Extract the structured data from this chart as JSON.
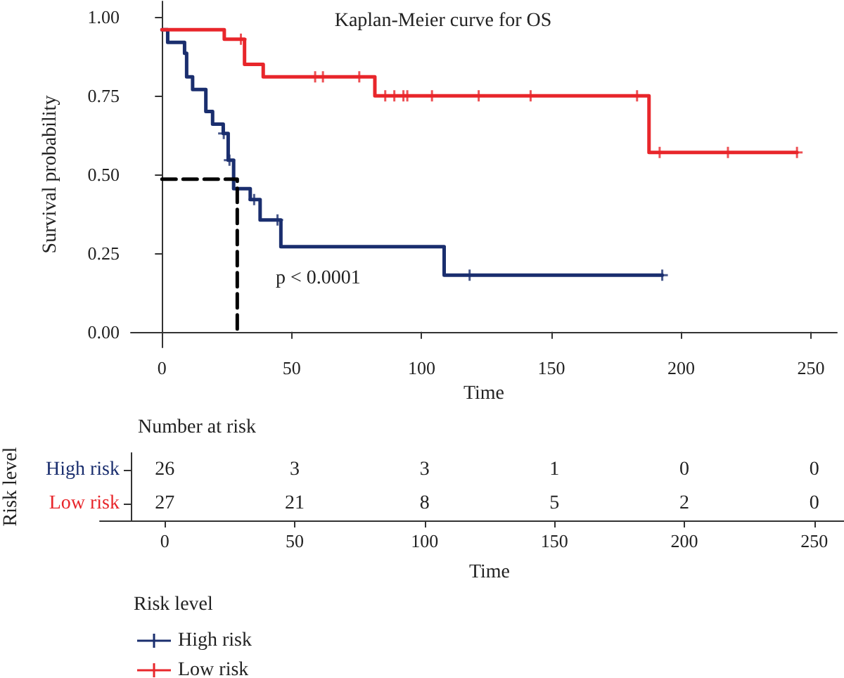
{
  "chart_data": [
    {
      "type": "step",
      "title": "Kaplan-Meier curve for OS",
      "xlabel": "Time",
      "ylabel": "Survival probability",
      "legend_title": "Risk level",
      "legend": "bottom left",
      "grid": false,
      "xlim": [
        -12,
        260
      ],
      "xticks": [
        0,
        50,
        100,
        150,
        200,
        250
      ],
      "ylim": [
        -0.05,
        1.05
      ],
      "yticks": [
        {
          "value": 0,
          "label": "0.00"
        },
        {
          "value": 0.25,
          "label": "0.25"
        },
        {
          "value": 0.5,
          "label": "0.50"
        },
        {
          "value": 0.75,
          "label": "0.75"
        },
        {
          "value": 1,
          "label": "1.00"
        }
      ],
      "annotations": [
        "p < 0.0001"
      ],
      "series": [
        {
          "name": "High risk",
          "color": "#1a2e6e",
          "marker": "none",
          "x": [
            0,
            2.2,
            8.7,
            9.5,
            11.8,
            16.9,
            19.5,
            23.6,
            25.5,
            27.6,
            34,
            37.8,
            45.8,
            108.7,
            192.7
          ],
          "values": [
            0.96,
            0.92,
            0.885,
            0.81,
            0.77,
            0.7,
            0.66,
            0.63,
            0.545,
            0.455,
            0.42,
            0.355,
            0.27,
            0.18,
            0.18
          ]
        },
        {
          "name": "Low risk",
          "color": "#e8262b",
          "marker": "none",
          "x": [
            0,
            24,
            31.8,
            39,
            82,
            187.6,
            244.6
          ],
          "values": [
            0.96,
            0.93,
            0.85,
            0.81,
            0.75,
            0.57,
            0.57
          ]
        },
        {
          "type": "scatter",
          "color": "#1a2e6e",
          "marker": "cross",
          "x": [
            23.8,
            26,
            35.5,
            44.5,
            118.5,
            192.7
          ],
          "values": [
            0.63,
            0.545,
            0.42,
            0.355,
            0.18,
            0.18
          ]
        },
        {
          "type": "scatter",
          "color": "#e8262b",
          "marker": "cross",
          "x": [
            30.4,
            59,
            62,
            76,
            86,
            89.5,
            93,
            94.5,
            104,
            122,
            142,
            183,
            191.7,
            218,
            244.6
          ],
          "values": [
            0.93,
            0.81,
            0.81,
            0.81,
            0.75,
            0.75,
            0.75,
            0.75,
            0.75,
            0.75,
            0.75,
            0.75,
            0.57,
            0.57,
            0.57
          ]
        },
        {
          "type": "line",
          "color": "#000000",
          "marker": "none",
          "line_style": "dashed",
          "x": [
            0,
            29,
            29
          ],
          "values": [
            0.485,
            0.485,
            0
          ]
        }
      ]
    },
    {
      "type": "heatmap",
      "title": "Number at risk",
      "xlabel": "Time",
      "ylabel": "Risk level",
      "data_labels": true,
      "categories": [
        "0",
        "50",
        "100",
        "150",
        "200",
        "250"
      ],
      "y_categories": [
        "High risk",
        "Low risk"
      ],
      "cells": [
        [
          26,
          3,
          3,
          1,
          0,
          0
        ],
        [
          27,
          21,
          8,
          5,
          2,
          0
        ]
      ]
    }
  ]
}
